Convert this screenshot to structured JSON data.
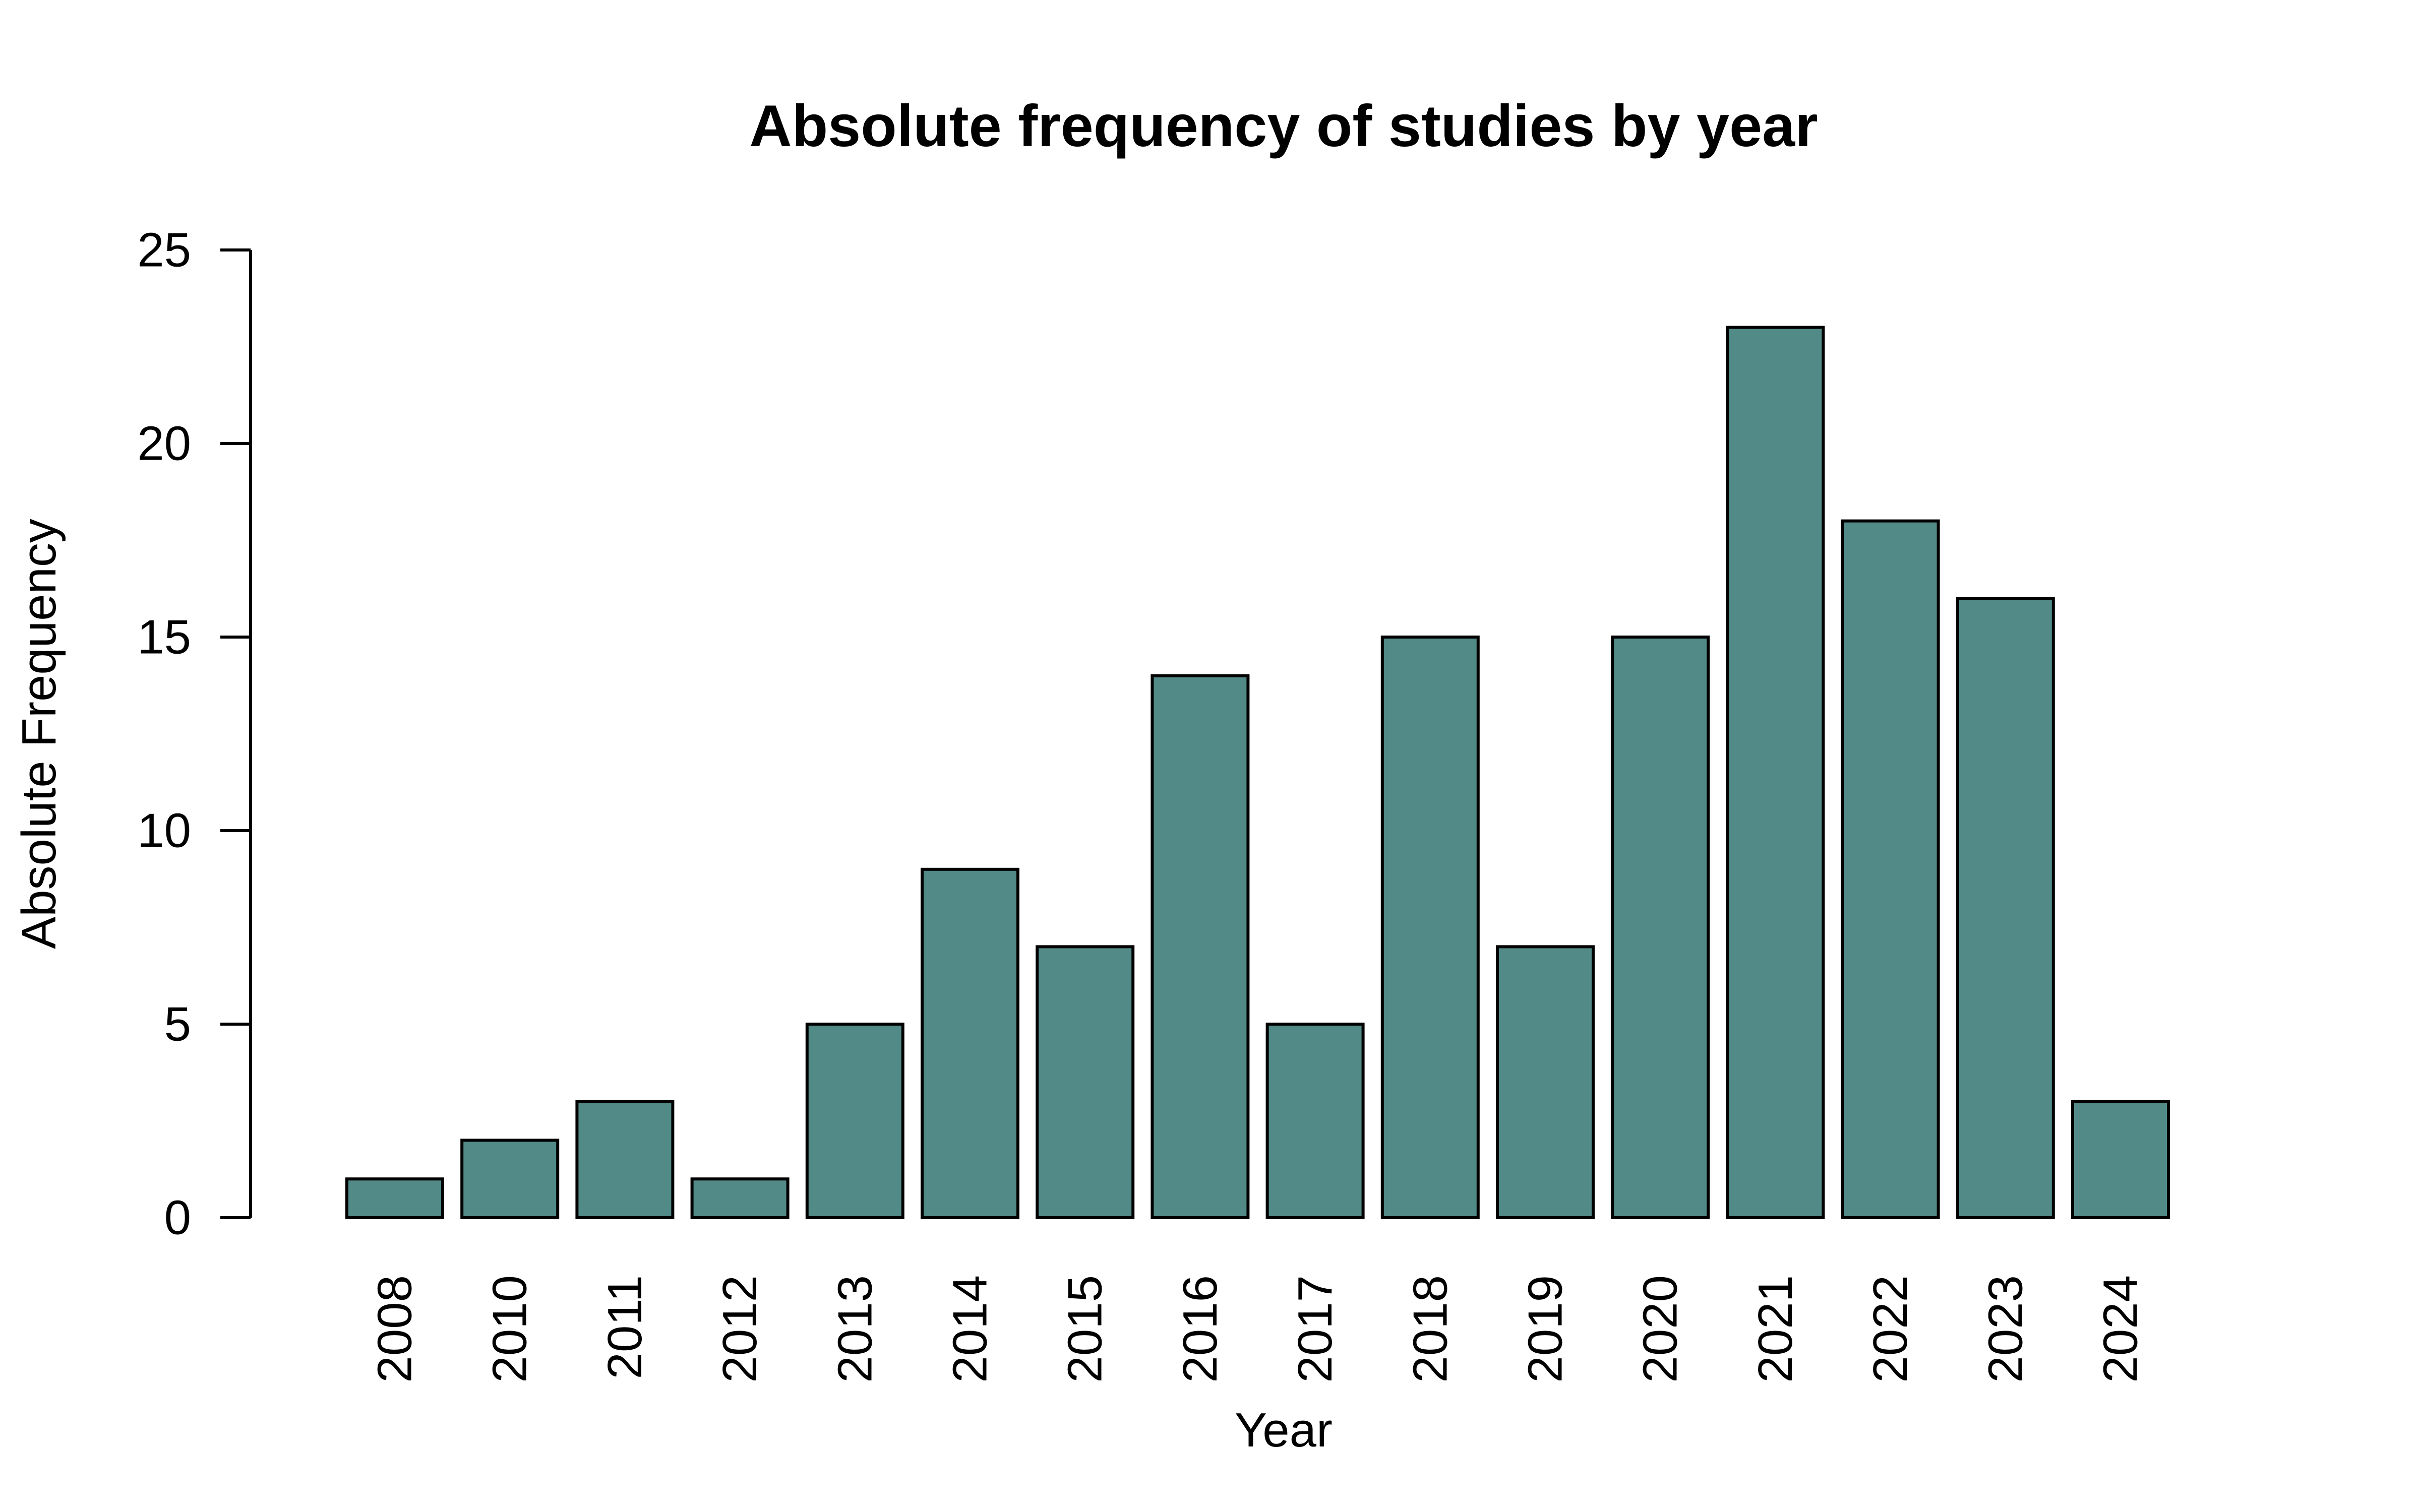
{
  "chart_data": {
    "type": "bar",
    "title": "Absolute frequency of studies by year",
    "xlabel": "Year",
    "ylabel": "Absolute Frequency",
    "categories": [
      "2008",
      "2010",
      "2011",
      "2012",
      "2013",
      "2014",
      "2015",
      "2016",
      "2017",
      "2018",
      "2019",
      "2020",
      "2021",
      "2022",
      "2023",
      "2024"
    ],
    "values": [
      1,
      2,
      3,
      1,
      5,
      9,
      7,
      14,
      5,
      15,
      7,
      15,
      23,
      18,
      16,
      3
    ],
    "ylim": [
      0,
      25
    ],
    "yticks": [
      0,
      5,
      10,
      15,
      20,
      25
    ],
    "grid": false,
    "legend": "none",
    "bar_color": "#528A88",
    "x_tick_orientation": "vertical"
  }
}
